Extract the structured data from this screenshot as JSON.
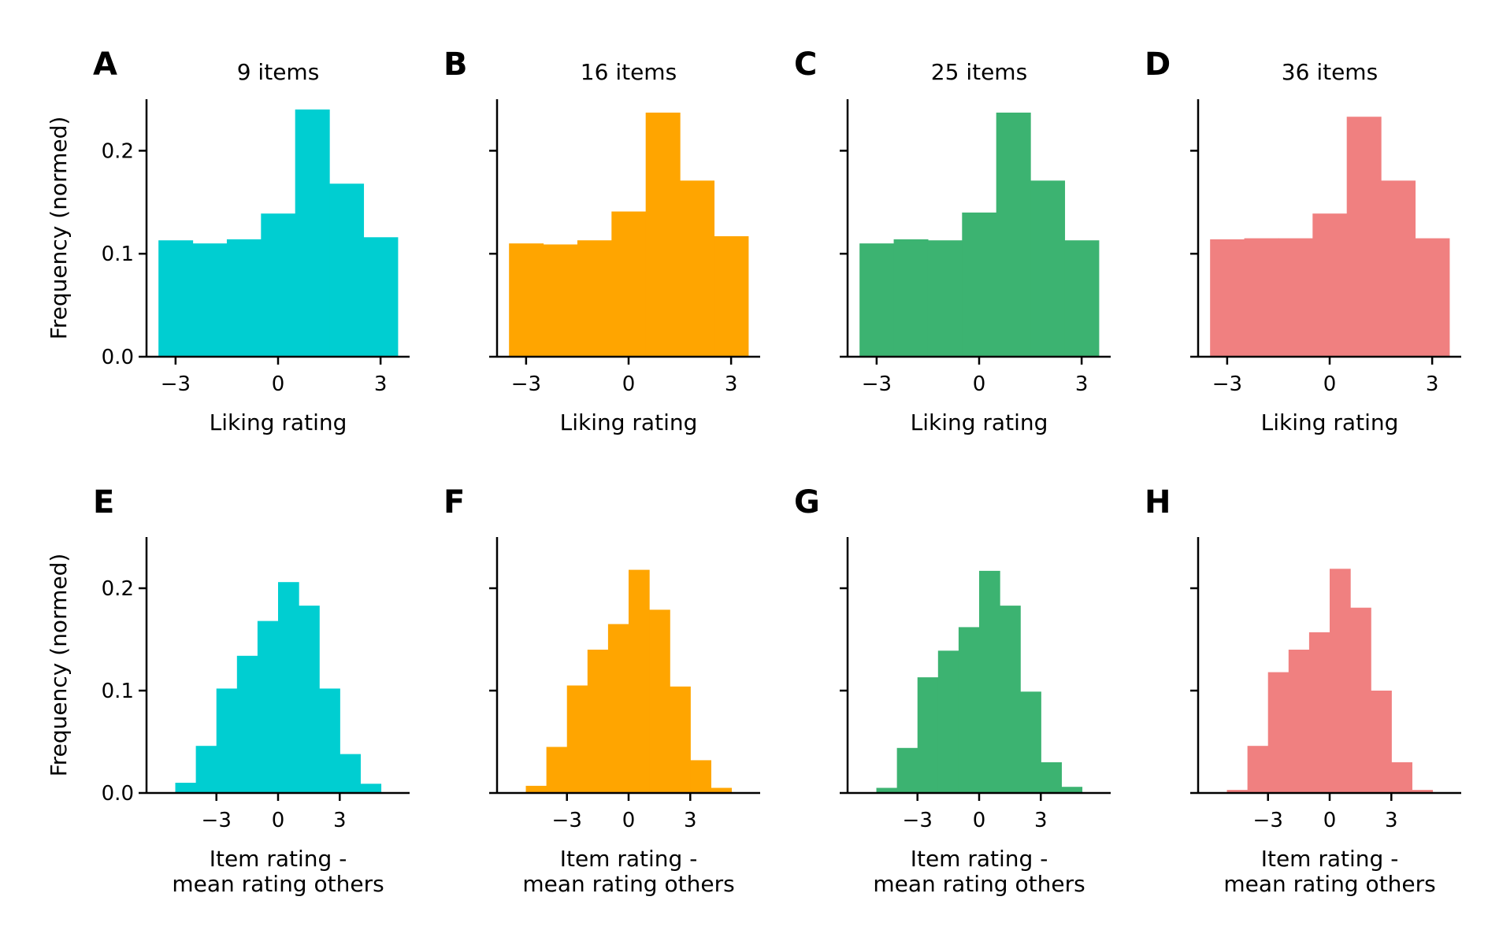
{
  "colors": [
    "#00CED1",
    "#FFA500",
    "#3CB371",
    "#F08080"
  ],
  "chart_data": [
    {
      "panel": "A",
      "type": "bar",
      "title": "9 items",
      "xlabel": [
        "Liking rating"
      ],
      "ylabel": "Frequency (normed)",
      "xlim": [
        -3.85,
        3.85
      ],
      "ylim": [
        0,
        0.25
      ],
      "xticks": [
        -3,
        0,
        3
      ],
      "yticks": [
        0.0,
        0.1,
        0.2
      ],
      "grid": false,
      "color": "#00CED1",
      "bins": [
        [
          -3.5,
          -2.5
        ],
        [
          -2.5,
          -1.5
        ],
        [
          -1.5,
          -0.5
        ],
        [
          -0.5,
          0.5
        ],
        [
          0.5,
          1.5
        ],
        [
          1.5,
          2.5
        ],
        [
          2.5,
          3.5
        ]
      ],
      "values": [
        0.113,
        0.11,
        0.114,
        0.139,
        0.24,
        0.168,
        0.116
      ]
    },
    {
      "panel": "B",
      "type": "bar",
      "title": "16 items",
      "xlabel": [
        "Liking rating"
      ],
      "ylabel": "",
      "xlim": [
        -3.85,
        3.85
      ],
      "ylim": [
        0,
        0.25
      ],
      "xticks": [
        -3,
        0,
        3
      ],
      "yticks": [
        0.0,
        0.1,
        0.2
      ],
      "grid": false,
      "color": "#FFA500",
      "bins": [
        [
          -3.5,
          -2.5
        ],
        [
          -2.5,
          -1.5
        ],
        [
          -1.5,
          -0.5
        ],
        [
          -0.5,
          0.5
        ],
        [
          0.5,
          1.5
        ],
        [
          1.5,
          2.5
        ],
        [
          2.5,
          3.5
        ]
      ],
      "values": [
        0.11,
        0.109,
        0.113,
        0.141,
        0.237,
        0.171,
        0.117
      ]
    },
    {
      "panel": "C",
      "type": "bar",
      "title": "25 items",
      "xlabel": [
        "Liking rating"
      ],
      "ylabel": "",
      "xlim": [
        -3.85,
        3.85
      ],
      "ylim": [
        0,
        0.25
      ],
      "xticks": [
        -3,
        0,
        3
      ],
      "yticks": [
        0.0,
        0.1,
        0.2
      ],
      "grid": false,
      "color": "#3CB371",
      "bins": [
        [
          -3.5,
          -2.5
        ],
        [
          -2.5,
          -1.5
        ],
        [
          -1.5,
          -0.5
        ],
        [
          -0.5,
          0.5
        ],
        [
          0.5,
          1.5
        ],
        [
          1.5,
          2.5
        ],
        [
          2.5,
          3.5
        ]
      ],
      "values": [
        0.11,
        0.114,
        0.113,
        0.14,
        0.237,
        0.171,
        0.113
      ]
    },
    {
      "panel": "D",
      "type": "bar",
      "title": "36 items",
      "xlabel": [
        "Liking rating"
      ],
      "ylabel": "",
      "xlim": [
        -3.85,
        3.85
      ],
      "ylim": [
        0,
        0.25
      ],
      "xticks": [
        -3,
        0,
        3
      ],
      "yticks": [
        0.0,
        0.1,
        0.2
      ],
      "grid": false,
      "color": "#F08080",
      "bins": [
        [
          -3.5,
          -2.5
        ],
        [
          -2.5,
          -1.5
        ],
        [
          -1.5,
          -0.5
        ],
        [
          -0.5,
          0.5
        ],
        [
          0.5,
          1.5
        ],
        [
          1.5,
          2.5
        ],
        [
          2.5,
          3.5
        ]
      ],
      "values": [
        0.114,
        0.115,
        0.115,
        0.139,
        0.233,
        0.171,
        0.115
      ]
    },
    {
      "panel": "E",
      "type": "bar",
      "title": "",
      "xlabel": [
        "Item rating -",
        "mean rating others"
      ],
      "ylabel": "Frequency (normed)",
      "xlim": [
        -6.4,
        6.4
      ],
      "ylim": [
        0,
        0.25
      ],
      "xticks": [
        -3,
        0,
        3
      ],
      "yticks": [
        0.0,
        0.1,
        0.2
      ],
      "grid": false,
      "color": "#00CED1",
      "bins": [
        [
          -5.0,
          -4.0
        ],
        [
          -4.0,
          -3.0
        ],
        [
          -3.0,
          -2.0
        ],
        [
          -2.0,
          -1.0
        ],
        [
          -1.0,
          0.0
        ],
        [
          0.0,
          1.0
        ],
        [
          1.0,
          2.0
        ],
        [
          2.0,
          3.0
        ],
        [
          3.0,
          4.0
        ],
        [
          4.0,
          5.0
        ]
      ],
      "values": [
        0.01,
        0.046,
        0.102,
        0.134,
        0.168,
        0.206,
        0.183,
        0.102,
        0.038,
        0.009
      ]
    },
    {
      "panel": "F",
      "type": "bar",
      "title": "",
      "xlabel": [
        "Item rating -",
        "mean rating others"
      ],
      "ylabel": "",
      "xlim": [
        -6.4,
        6.4
      ],
      "ylim": [
        0,
        0.25
      ],
      "xticks": [
        -3,
        0,
        3
      ],
      "yticks": [
        0.0,
        0.1,
        0.2
      ],
      "grid": false,
      "color": "#FFA500",
      "bins": [
        [
          -5.0,
          -4.0
        ],
        [
          -4.0,
          -3.0
        ],
        [
          -3.0,
          -2.0
        ],
        [
          -2.0,
          -1.0
        ],
        [
          -1.0,
          0.0
        ],
        [
          0.0,
          1.0
        ],
        [
          1.0,
          2.0
        ],
        [
          2.0,
          3.0
        ],
        [
          3.0,
          4.0
        ],
        [
          4.0,
          5.0
        ]
      ],
      "values": [
        0.007,
        0.045,
        0.105,
        0.14,
        0.165,
        0.218,
        0.179,
        0.104,
        0.032,
        0.005
      ]
    },
    {
      "panel": "G",
      "type": "bar",
      "title": "",
      "xlabel": [
        "Item rating -",
        "mean rating others"
      ],
      "ylabel": "",
      "xlim": [
        -6.4,
        6.4
      ],
      "ylim": [
        0,
        0.25
      ],
      "xticks": [
        -3,
        0,
        3
      ],
      "yticks": [
        0.0,
        0.1,
        0.2
      ],
      "grid": false,
      "color": "#3CB371",
      "bins": [
        [
          -5.0,
          -4.0
        ],
        [
          -4.0,
          -3.0
        ],
        [
          -3.0,
          -2.0
        ],
        [
          -2.0,
          -1.0
        ],
        [
          -1.0,
          0.0
        ],
        [
          0.0,
          1.0
        ],
        [
          1.0,
          2.0
        ],
        [
          2.0,
          3.0
        ],
        [
          3.0,
          4.0
        ],
        [
          4.0,
          5.0
        ]
      ],
      "values": [
        0.005,
        0.044,
        0.113,
        0.139,
        0.162,
        0.217,
        0.183,
        0.099,
        0.03,
        0.006
      ]
    },
    {
      "panel": "H",
      "type": "bar",
      "title": "",
      "xlabel": [
        "Item rating -",
        "mean rating others"
      ],
      "ylabel": "",
      "xlim": [
        -6.4,
        6.4
      ],
      "ylim": [
        0,
        0.25
      ],
      "xticks": [
        -3,
        0,
        3
      ],
      "yticks": [
        0.0,
        0.1,
        0.2
      ],
      "grid": false,
      "color": "#F08080",
      "bins": [
        [
          -5.0,
          -4.0
        ],
        [
          -4.0,
          -3.0
        ],
        [
          -3.0,
          -2.0
        ],
        [
          -2.0,
          -1.0
        ],
        [
          -1.0,
          0.0
        ],
        [
          0.0,
          1.0
        ],
        [
          1.0,
          2.0
        ],
        [
          2.0,
          3.0
        ],
        [
          3.0,
          4.0
        ],
        [
          4.0,
          5.0
        ]
      ],
      "values": [
        0.003,
        0.046,
        0.118,
        0.14,
        0.157,
        0.219,
        0.181,
        0.1,
        0.03,
        0.003
      ]
    }
  ]
}
